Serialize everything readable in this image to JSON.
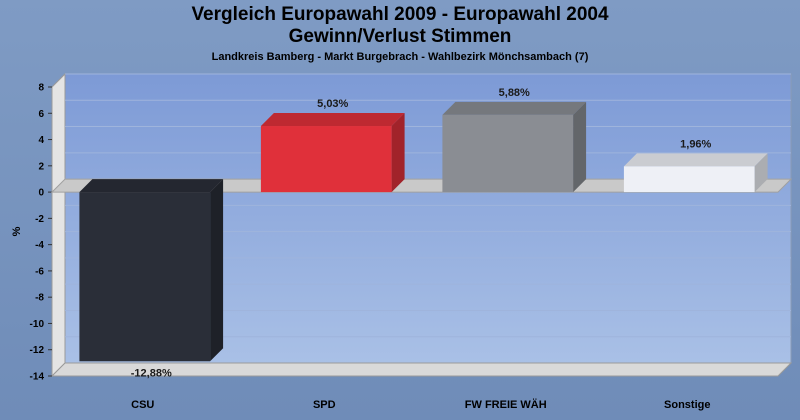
{
  "header": {
    "title": "Vergleich Europawahl 2009 - Europawahl 2004",
    "title2": "Gewinn/Verlust Stimmen",
    "subtitle": "Landkreis Bamberg - Markt Burgebrach - Wahlbezirk Mönchsambach (7)"
  },
  "chart_data": {
    "type": "bar",
    "title": "Vergleich Europawahl 2009 - Europawahl 2004",
    "subtitle": "Gewinn/Verlust Stimmen",
    "ylabel": "%",
    "xlabel": "",
    "categories": [
      "CSU",
      "SPD",
      "FW FREIE WÄH",
      "Sonstige"
    ],
    "values": [
      -12.88,
      5.03,
      5.88,
      1.96
    ],
    "data_labels": [
      "-12,88%",
      "5,03%",
      "5,88%",
      "1,96%"
    ],
    "colors": [
      "#2a2e38",
      "#e0303a",
      "#8a8d93",
      "#eef0f6"
    ],
    "ylim": [
      -14,
      8
    ],
    "yticks": [
      8,
      6,
      4,
      2,
      0,
      -2,
      -4,
      -6,
      -8,
      -10,
      -12,
      -14
    ],
    "grid": true,
    "legend": "none"
  }
}
